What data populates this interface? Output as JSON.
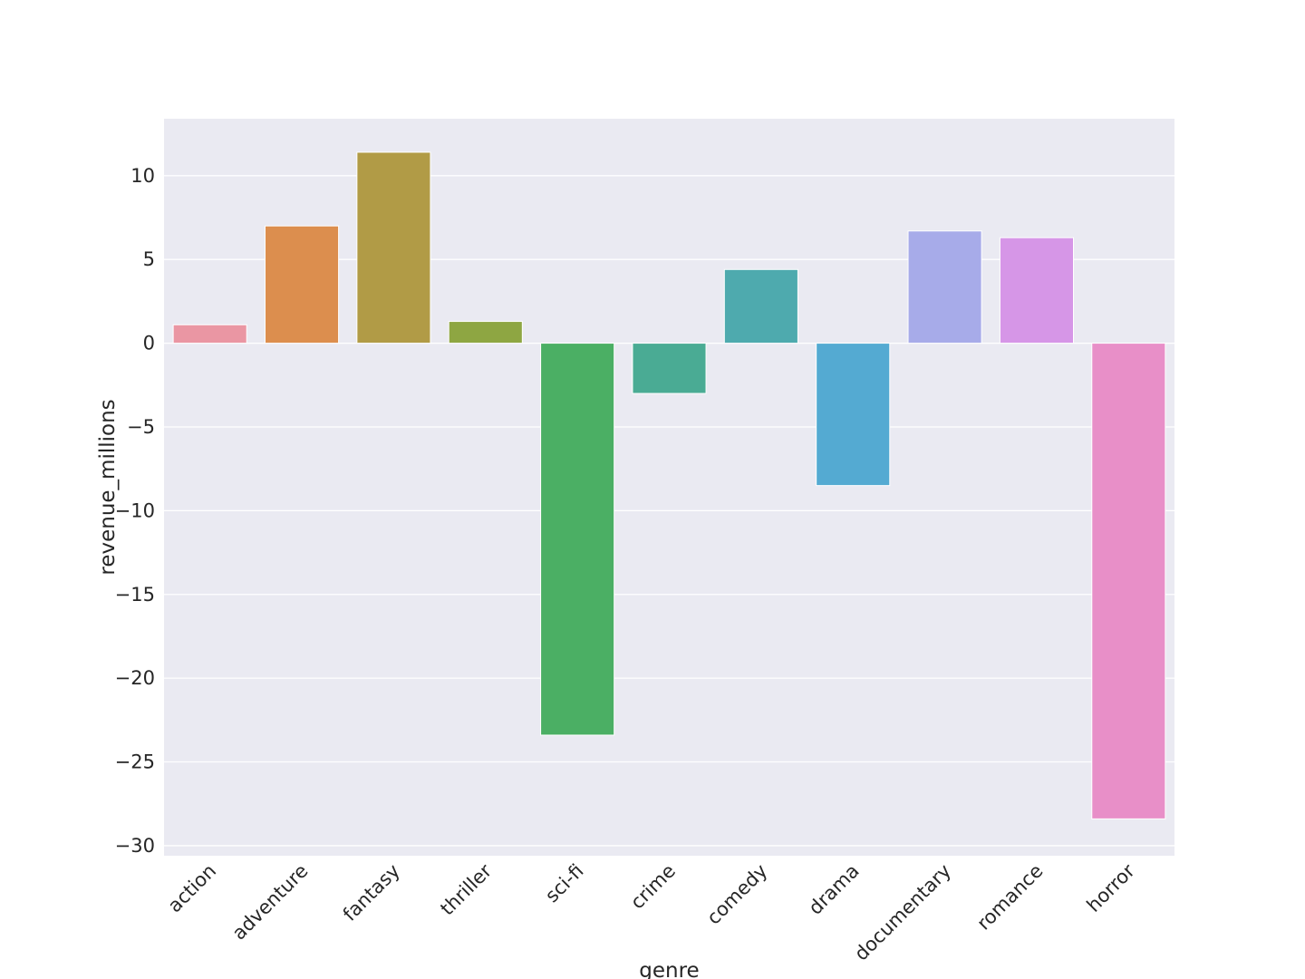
{
  "chart_data": {
    "type": "bar",
    "title": "",
    "xlabel": "genre",
    "ylabel": "revenue_millions",
    "categories": [
      "action",
      "adventure",
      "fantasy",
      "thriller",
      "sci-fi",
      "crime",
      "comedy",
      "drama",
      "documentary",
      "romance",
      "horror"
    ],
    "values": [
      1.1,
      7.0,
      11.4,
      1.3,
      -23.4,
      -3.0,
      4.4,
      -8.5,
      6.7,
      6.3,
      -28.4
    ],
    "colors": [
      "#ea96a3",
      "#dc8e4e",
      "#b19b46",
      "#8ea642",
      "#4baf64",
      "#4aab94",
      "#4eaaae",
      "#54aad2",
      "#a7abe9",
      "#d696e7",
      "#e88fc8"
    ],
    "ylim": [
      -30.6,
      13.4
    ],
    "yticks": [
      10,
      5,
      0,
      -5,
      -10,
      -15,
      -20,
      -25,
      -30
    ],
    "ytick_labels": [
      "10",
      "5",
      "0",
      "−5",
      "−10",
      "−15",
      "−20",
      "−25",
      "−30"
    ],
    "grid": true,
    "legend": "none",
    "style": {
      "plot_background": "#eaeaf2",
      "grid_color": "#ffffff",
      "text_color": "#262626"
    }
  }
}
